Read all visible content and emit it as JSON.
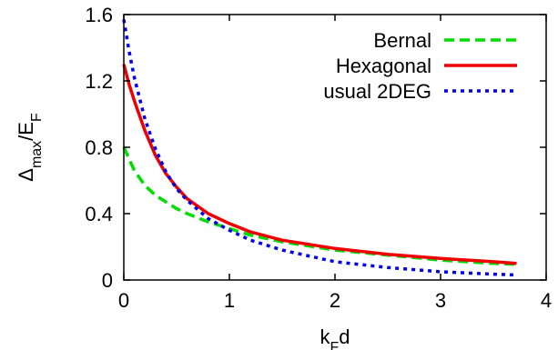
{
  "chart_data": {
    "type": "line",
    "xlabel": {
      "main": "k",
      "sub": "F",
      "tail": "d"
    },
    "ylabel": {
      "pre": "Δ",
      "sub1": "max",
      "mid": "/E",
      "sub2": "F"
    },
    "xlim": [
      0,
      4
    ],
    "ylim": [
      0,
      1.6
    ],
    "xticks": [
      0,
      1,
      2,
      3,
      4
    ],
    "xtick_labels": [
      "0",
      "1",
      "2",
      "3",
      "4"
    ],
    "yticks": [
      0,
      0.4,
      0.8,
      1.2,
      1.6
    ],
    "ytick_labels": [
      "0",
      "0.4",
      "0.8",
      "1.2",
      "1.6"
    ],
    "grid": false,
    "legend_position": "top-right",
    "series": [
      {
        "name": "Bernal",
        "color": "#00dd00",
        "dash": "dashed",
        "x": [
          0,
          0.1,
          0.2,
          0.3,
          0.4,
          0.5,
          0.6,
          0.8,
          1.0,
          1.2,
          1.5,
          2.0,
          2.5,
          3.0,
          3.5,
          3.72
        ],
        "y": [
          0.8,
          0.66,
          0.57,
          0.51,
          0.47,
          0.43,
          0.4,
          0.35,
          0.31,
          0.27,
          0.23,
          0.18,
          0.15,
          0.12,
          0.1,
          0.095
        ]
      },
      {
        "name": "Hexagonal",
        "color": "#ee0000",
        "dash": "solid",
        "x": [
          0,
          0.05,
          0.1,
          0.2,
          0.3,
          0.4,
          0.5,
          0.6,
          0.8,
          1.0,
          1.2,
          1.5,
          2.0,
          2.5,
          3.0,
          3.5,
          3.72
        ],
        "y": [
          1.3,
          1.18,
          1.08,
          0.9,
          0.75,
          0.64,
          0.56,
          0.49,
          0.4,
          0.34,
          0.29,
          0.24,
          0.19,
          0.155,
          0.13,
          0.11,
          0.1
        ]
      },
      {
        "name": "usual 2DEG",
        "color": "#0000ee",
        "dash": "dotted",
        "x": [
          0,
          0.05,
          0.1,
          0.2,
          0.3,
          0.4,
          0.5,
          0.6,
          0.8,
          1.0,
          1.2,
          1.5,
          2.0,
          2.5,
          3.0,
          3.5,
          3.72
        ],
        "y": [
          1.57,
          1.38,
          1.22,
          0.97,
          0.79,
          0.65,
          0.55,
          0.48,
          0.37,
          0.3,
          0.24,
          0.18,
          0.11,
          0.075,
          0.05,
          0.035,
          0.03
        ]
      }
    ]
  }
}
